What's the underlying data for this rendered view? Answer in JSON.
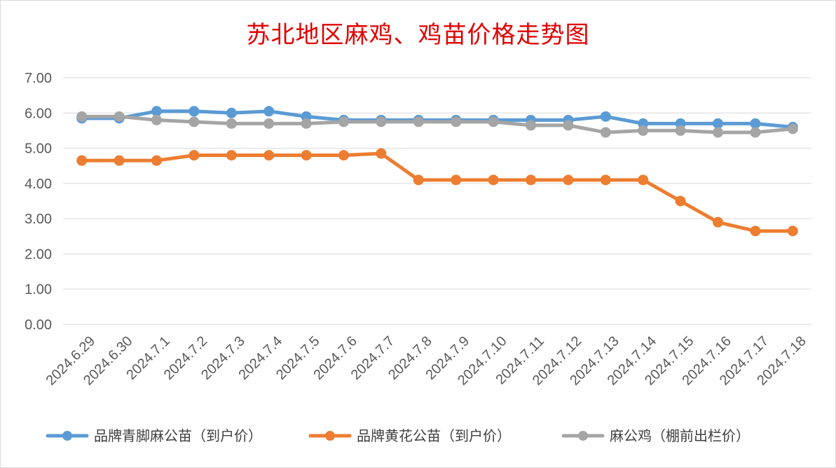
{
  "chart_data": {
    "type": "line",
    "title": "苏北地区麻鸡、鸡苗价格走势图",
    "categories": [
      "2024.6.29",
      "2024.6.30",
      "2024.7.1",
      "2024.7.2",
      "2024.7.3",
      "2024.7.4",
      "2024.7.5",
      "2024.7.6",
      "2024.7.7",
      "2024.7.8",
      "2024.7.9",
      "2024.7.10",
      "2024.7.11",
      "2024.7.12",
      "2024.7.13",
      "2024.7.14",
      "2024.7.15",
      "2024.7.16",
      "2024.7.17",
      "2024.7.18"
    ],
    "ylim": [
      0,
      7
    ],
    "yticks": [
      "0.00",
      "1.00",
      "2.00",
      "3.00",
      "4.00",
      "5.00",
      "6.00",
      "7.00"
    ],
    "grid": true,
    "legend_position": "bottom",
    "series": [
      {
        "name": "品牌青脚麻公苗（到户价）",
        "color": "#5b9bd5",
        "values": [
          5.85,
          5.85,
          6.05,
          6.05,
          6.0,
          6.05,
          5.9,
          5.8,
          5.8,
          5.8,
          5.8,
          5.8,
          5.8,
          5.8,
          5.9,
          5.7,
          5.7,
          5.7,
          5.7,
          5.6
        ]
      },
      {
        "name": "品牌黄花公苗（到户价）",
        "color": "#ed7d31",
        "values": [
          4.65,
          4.65,
          4.65,
          4.8,
          4.8,
          4.8,
          4.8,
          4.8,
          4.85,
          4.1,
          4.1,
          4.1,
          4.1,
          4.1,
          4.1,
          4.1,
          3.5,
          2.9,
          2.65,
          2.65
        ]
      },
      {
        "name": "麻公鸡（棚前出栏价）",
        "color": "#a5a5a5",
        "values": [
          5.9,
          5.9,
          5.8,
          5.75,
          5.7,
          5.7,
          5.7,
          5.75,
          5.75,
          5.75,
          5.75,
          5.75,
          5.65,
          5.65,
          5.45,
          5.5,
          5.5,
          5.45,
          5.45,
          5.55
        ]
      }
    ]
  }
}
